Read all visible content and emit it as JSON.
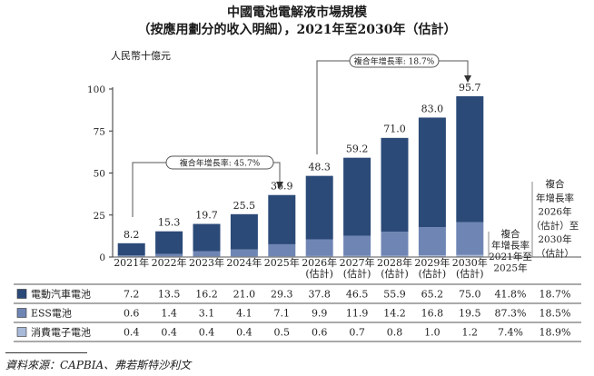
{
  "title_line1": "中國電池電解液市場規模",
  "title_line2": "（按應用劃分的收入明細），2021年至2030年（估計）",
  "unit_label": "人民幣十億元",
  "source": "資料來源：CAPBIA、弗若斯特沙利文",
  "cagr_labels": {
    "hist": "複合年增長率: 45.7%",
    "fcst": "複合年增長率: 18.7%"
  },
  "cagr_headers": [
    [
      "複合",
      "年增長率",
      "2021年至",
      "2025年"
    ],
    [
      "複合",
      "年增長率",
      "2026年",
      "（估計）至",
      "2030年",
      "（估計）"
    ]
  ],
  "chart_data": {
    "type": "bar",
    "stacked": true,
    "categories": [
      [
        "2021年"
      ],
      [
        "2022年"
      ],
      [
        "2023年"
      ],
      [
        "2024年"
      ],
      [
        "2025年"
      ],
      [
        "2026年",
        "(估計)"
      ],
      [
        "2027年",
        "(估計)"
      ],
      [
        "2028年",
        "(估計)"
      ],
      [
        "2029年",
        "(估計)"
      ],
      [
        "2030年",
        "(估計)"
      ]
    ],
    "totals": [
      "8.2",
      "15.3",
      "19.7",
      "25.5",
      "36.9",
      "48.3",
      "59.2",
      "71.0",
      "83.0",
      "95.7"
    ],
    "total_values": [
      8.2,
      15.3,
      19.7,
      25.5,
      36.9,
      48.3,
      59.2,
      71.0,
      83.0,
      95.7
    ],
    "yticks": [
      "0",
      "25",
      "50",
      "75",
      "100"
    ],
    "ylim": [
      0,
      100
    ],
    "series": [
      {
        "name": "電動汽車電池",
        "color": "#2b4a78",
        "values": [
          7.2,
          13.5,
          16.2,
          21.0,
          29.3,
          37.8,
          46.5,
          55.9,
          65.2,
          75.0
        ],
        "labels": [
          "7.2",
          "13.5",
          "16.2",
          "21.0",
          "29.3",
          "37.8",
          "46.5",
          "55.9",
          "65.2",
          "75.0"
        ],
        "cagr": [
          "41.8%",
          "18.7%"
        ]
      },
      {
        "name": "ESS電池",
        "color": "#6f86b4",
        "values": [
          0.6,
          1.4,
          3.1,
          4.1,
          7.1,
          9.9,
          11.9,
          14.2,
          16.8,
          19.5
        ],
        "labels": [
          "0.6",
          "1.4",
          "3.1",
          "4.1",
          "7.1",
          "9.9",
          "11.9",
          "14.2",
          "16.8",
          "19.5"
        ],
        "cagr": [
          "87.3%",
          "18.5%"
        ]
      },
      {
        "name": "消費電子電池",
        "color": "#a9b9d8",
        "values": [
          0.4,
          0.4,
          0.4,
          0.4,
          0.5,
          0.6,
          0.7,
          0.8,
          1.0,
          1.2
        ],
        "labels": [
          "0.4",
          "0.4",
          "0.4",
          "0.4",
          "0.5",
          "0.6",
          "0.7",
          "0.8",
          "1.0",
          "1.2"
        ],
        "cagr": [
          "7.4%",
          "18.9%"
        ]
      }
    ]
  }
}
